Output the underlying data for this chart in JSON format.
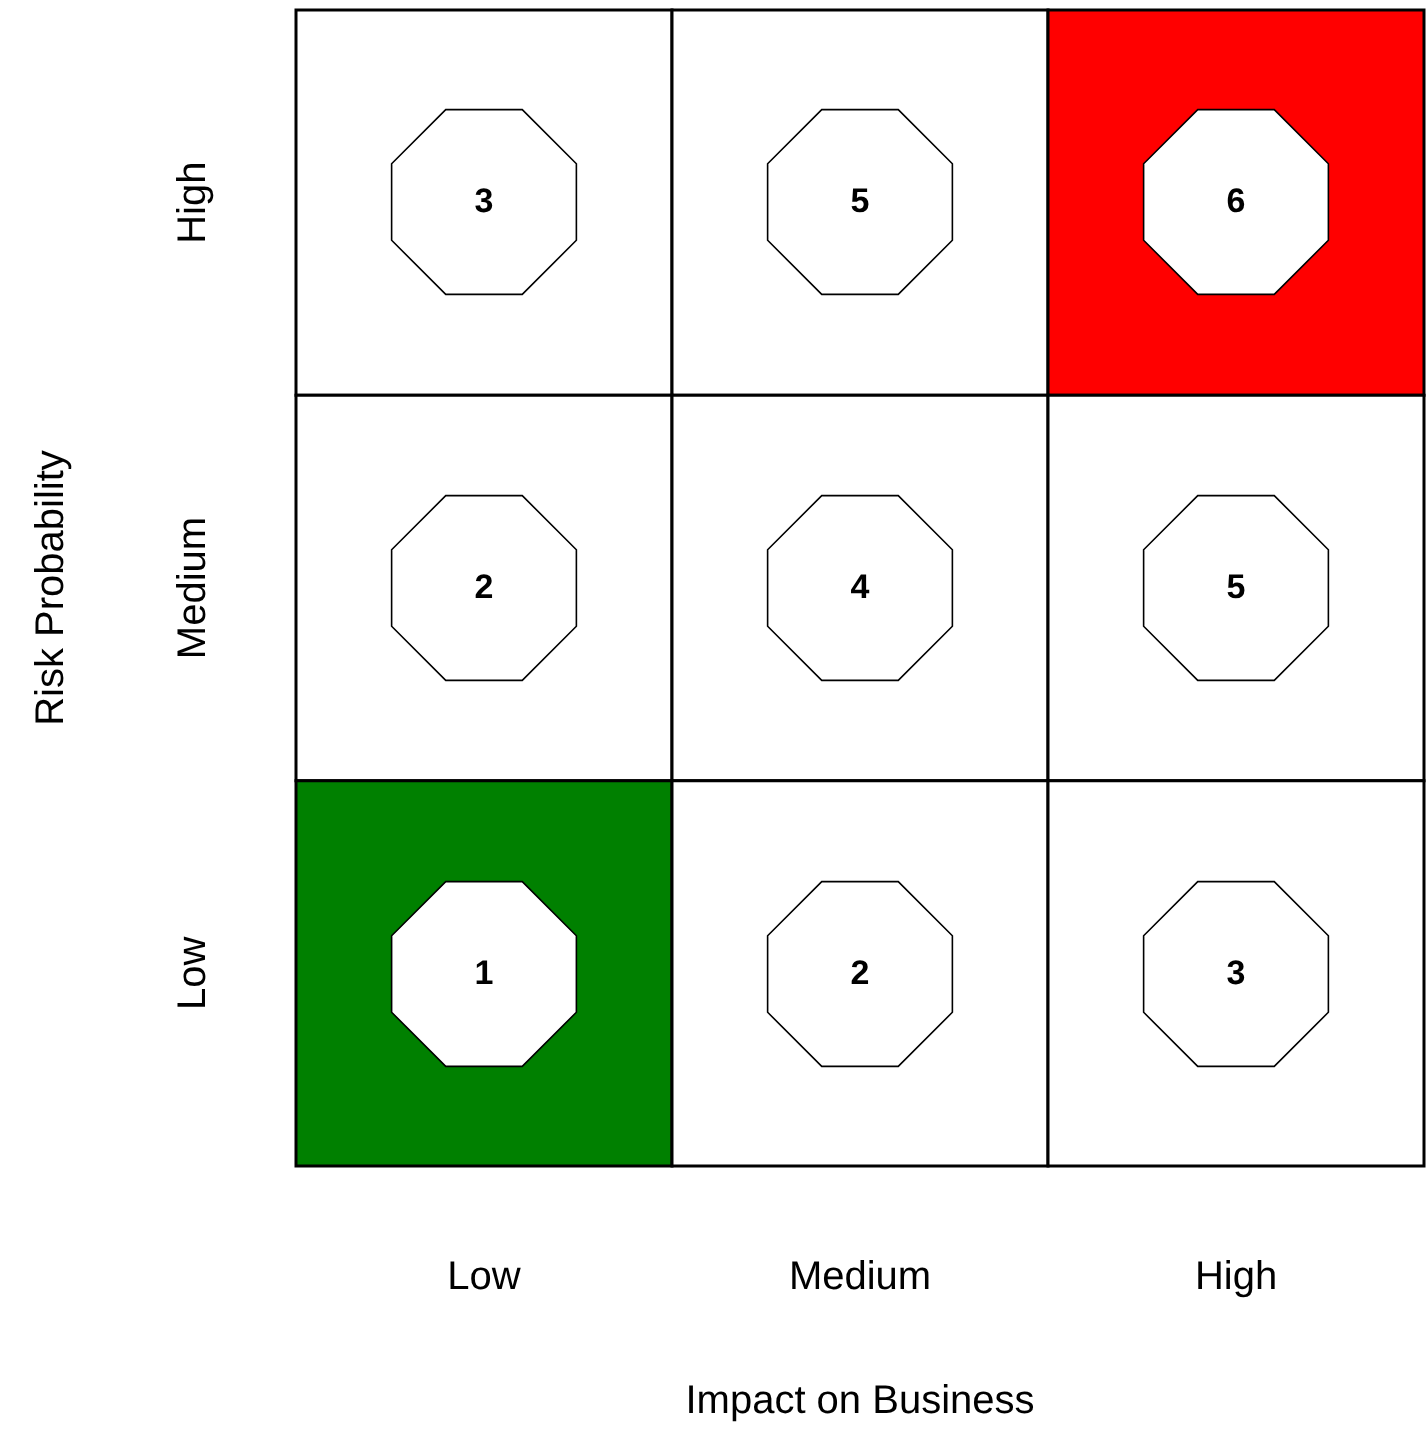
{
  "chart_data": {
    "type": "heatmap",
    "xlabel": "Impact on Business",
    "ylabel": "Risk Probability",
    "categories": [
      "Low",
      "Medium",
      "High"
    ],
    "y_categories": [
      "High",
      "Medium",
      "Low"
    ],
    "cells": [
      [
        3,
        5,
        6
      ],
      [
        2,
        4,
        5
      ],
      [
        1,
        2,
        3
      ]
    ],
    "colors": [
      [
        "#ffffff",
        "#ffffff",
        "#ff0000"
      ],
      [
        "#ffffff",
        "#ffffff",
        "#ffffff"
      ],
      [
        "#008000",
        "#ffffff",
        "#ffffff"
      ]
    ],
    "data_labels": true
  }
}
